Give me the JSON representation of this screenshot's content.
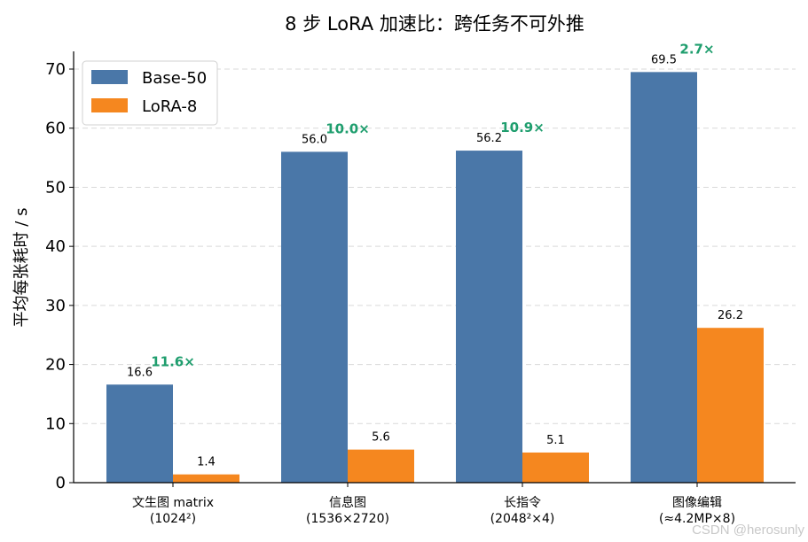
{
  "chart_data": {
    "type": "bar",
    "title": "8 步 LoRA 加速比：跨任务不可外推",
    "ylabel": "平均每张耗时 / s",
    "xlabel": "",
    "ylim": [
      0,
      73
    ],
    "yticks": [
      0,
      10,
      20,
      30,
      40,
      50,
      60,
      70
    ],
    "grid": "y-dashed",
    "legend_position": "top-left",
    "categories": [
      [
        "文生图 matrix",
        "(1024²)"
      ],
      [
        "信息图",
        "(1536×2720)"
      ],
      [
        "长指令",
        "(2048²×4)"
      ],
      [
        "图像编辑",
        "(≈4.2MP×8)"
      ]
    ],
    "series": [
      {
        "name": "Base-50",
        "values": [
          16.6,
          56.0,
          56.2,
          69.5
        ],
        "labels": [
          "16.6",
          "56.0",
          "56.2",
          "69.5"
        ],
        "color": "#4a77a8"
      },
      {
        "name": "LoRA-8",
        "values": [
          1.4,
          5.6,
          5.1,
          26.2
        ],
        "labels": [
          "1.4",
          "5.6",
          "5.1",
          "26.2"
        ],
        "color": "#f5871f"
      }
    ],
    "speedups": [
      "11.6×",
      "10.0×",
      "10.9×",
      "2.7×"
    ],
    "speedup_color": "#1f9e6e"
  },
  "watermark": "CSDN @herosunly"
}
